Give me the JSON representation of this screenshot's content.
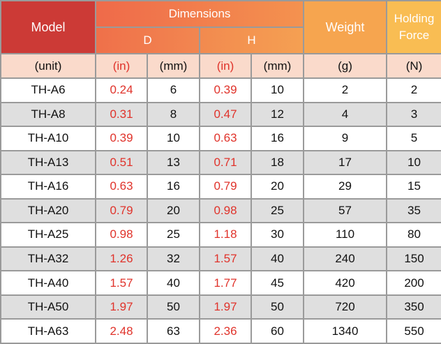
{
  "header": {
    "model": "Model",
    "dimensions": "Dimensions",
    "d": "D",
    "h": "H",
    "weight": "Weight",
    "holding_force": "Holding Force"
  },
  "units": {
    "model": "(unit)",
    "d_in": "(in)",
    "d_mm": "(mm)",
    "h_in": "(in)",
    "h_mm": "(mm)",
    "weight": "(g)",
    "force": "(N)"
  },
  "rows": [
    {
      "model": "TH-A6",
      "d_in": "0.24",
      "d_mm": "6",
      "h_in": "0.39",
      "h_mm": "10",
      "weight": "2",
      "force": "2"
    },
    {
      "model": "TH-A8",
      "d_in": "0.31",
      "d_mm": "8",
      "h_in": "0.47",
      "h_mm": "12",
      "weight": "4",
      "force": "3"
    },
    {
      "model": "TH-A10",
      "d_in": "0.39",
      "d_mm": "10",
      "h_in": "0.63",
      "h_mm": "16",
      "weight": "9",
      "force": "5"
    },
    {
      "model": "TH-A13",
      "d_in": "0.51",
      "d_mm": "13",
      "h_in": "0.71",
      "h_mm": "18",
      "weight": "17",
      "force": "10"
    },
    {
      "model": "TH-A16",
      "d_in": "0.63",
      "d_mm": "16",
      "h_in": "0.79",
      "h_mm": "20",
      "weight": "29",
      "force": "15"
    },
    {
      "model": "TH-A20",
      "d_in": "0.79",
      "d_mm": "20",
      "h_in": "0.98",
      "h_mm": "25",
      "weight": "57",
      "force": "35"
    },
    {
      "model": "TH-A25",
      "d_in": "0.98",
      "d_mm": "25",
      "h_in": "1.18",
      "h_mm": "30",
      "weight": "110",
      "force": "80"
    },
    {
      "model": "TH-A32",
      "d_in": "1.26",
      "d_mm": "32",
      "h_in": "1.57",
      "h_mm": "40",
      "weight": "240",
      "force": "150"
    },
    {
      "model": "TH-A40",
      "d_in": "1.57",
      "d_mm": "40",
      "h_in": "1.77",
      "h_mm": "45",
      "weight": "420",
      "force": "200"
    },
    {
      "model": "TH-A50",
      "d_in": "1.97",
      "d_mm": "50",
      "h_in": "1.97",
      "h_mm": "50",
      "weight": "720",
      "force": "350"
    },
    {
      "model": "TH-A63",
      "d_in": "2.48",
      "d_mm": "63",
      "h_in": "2.36",
      "h_mm": "60",
      "weight": "1340",
      "force": "550"
    }
  ],
  "colors": {
    "model_header": "#cc3a36",
    "dimensions_header": "#f07a4c",
    "weight_header": "#f6a54f",
    "holding_header": "#f9bd53",
    "unit_row": "#fadacb",
    "inch_text": "#e0332b",
    "alt_row": "#dfdfdf"
  }
}
